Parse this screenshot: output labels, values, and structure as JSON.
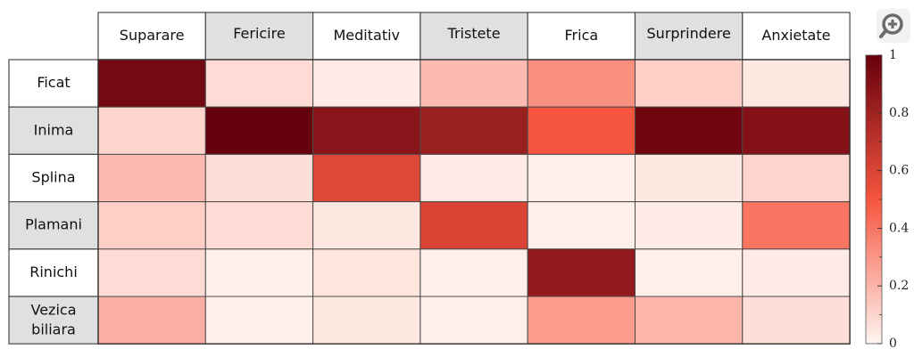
{
  "chart_data": {
    "type": "heatmap",
    "columns": [
      "Suparare",
      "Fericire",
      "Meditativ",
      "Tristete",
      "Frica",
      "Surprindere",
      "Anxietate"
    ],
    "rows": [
      "Ficat",
      "Inima",
      "Splina",
      "Plamani",
      "Rinichi",
      "Vezica biliara"
    ],
    "values": [
      [
        0.95,
        0.08,
        0.03,
        0.18,
        0.32,
        0.12,
        0.04
      ],
      [
        0.1,
        1.0,
        0.88,
        0.82,
        0.5,
        0.97,
        0.9
      ],
      [
        0.18,
        0.07,
        0.58,
        0.03,
        0.02,
        0.04,
        0.1
      ],
      [
        0.12,
        0.08,
        0.04,
        0.6,
        0.02,
        0.03,
        0.4
      ],
      [
        0.08,
        0.02,
        0.05,
        0.02,
        0.85,
        0.02,
        0.03
      ],
      [
        0.22,
        0.02,
        0.04,
        0.02,
        0.28,
        0.2,
        0.07
      ]
    ],
    "colorbar": {
      "range": [
        0,
        1
      ],
      "tick_labels": [
        "0",
        "0.2",
        "0.4",
        "0.6",
        "0.8",
        "1"
      ]
    },
    "colormap": {
      "low": "#fff5f0",
      "mid": "#f6553f",
      "high": "#67000d"
    },
    "header_colors": {
      "highlight": "#e0e0e0",
      "plain": "#ffffff"
    }
  },
  "toolbar": {
    "zoom_icon": "zoom-in-icon"
  }
}
